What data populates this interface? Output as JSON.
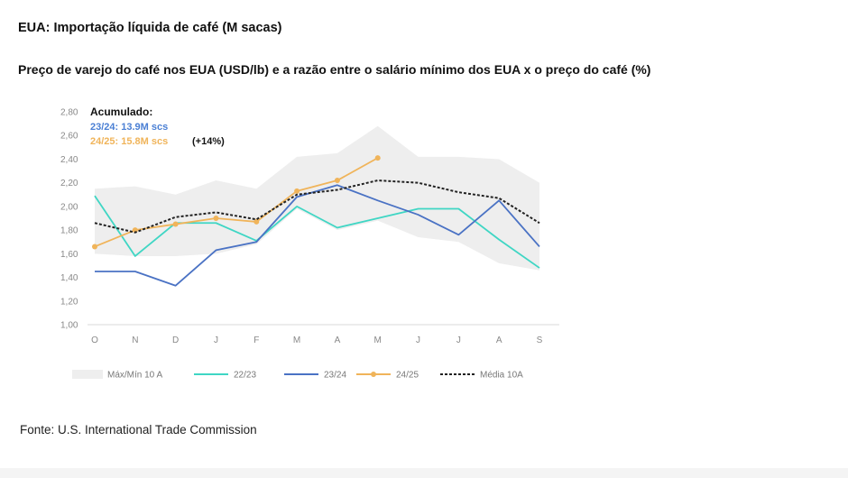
{
  "title": "EUA: Importação líquida de café (M sacas)",
  "subtitle": "Preço de varejo do café nos EUA (USD/lb) e a razão entre o salário mínimo dos EUA x o preço do café (%)",
  "source": "Fonte: U.S. International Trade Commission",
  "annotation": {
    "heading": "Acumulado:",
    "line1": "23/24: 13.9M scs",
    "line2": "24/25: 15.8M scs",
    "line2_suffix": "(+14%)"
  },
  "chart_data": {
    "type": "line",
    "categories": [
      "O",
      "N",
      "D",
      "J",
      "F",
      "M",
      "A",
      "M",
      "J",
      "J",
      "A",
      "S"
    ],
    "ylim": [
      1.0,
      2.8
    ],
    "yticks": [
      "1,00",
      "1,20",
      "1,40",
      "1,60",
      "1,80",
      "2,00",
      "2,20",
      "2,40",
      "2,60",
      "2,80"
    ],
    "grid": false,
    "legend_position": "bottom",
    "band": {
      "name": "Máx/Mín 10 A",
      "color": "#eeeeee",
      "max": [
        2.15,
        2.17,
        2.1,
        2.22,
        2.15,
        2.42,
        2.45,
        2.68,
        2.42,
        2.42,
        2.4,
        2.2
      ],
      "min": [
        1.6,
        1.58,
        1.58,
        1.6,
        1.68,
        1.98,
        1.8,
        1.88,
        1.74,
        1.7,
        1.52,
        1.46
      ]
    },
    "series": [
      {
        "name": "22/23",
        "color": "#3fd6c4",
        "style": "solid",
        "marker": false,
        "values": [
          2.09,
          1.58,
          1.86,
          1.86,
          1.71,
          2.0,
          1.82,
          1.9,
          1.98,
          1.98,
          1.72,
          1.48
        ]
      },
      {
        "name": "23/24",
        "color": "#4a72c4",
        "style": "solid",
        "marker": false,
        "values": [
          1.45,
          1.45,
          1.33,
          1.63,
          1.7,
          2.08,
          2.18,
          2.05,
          1.93,
          1.76,
          2.05,
          1.66
        ]
      },
      {
        "name": "24/25",
        "color": "#f0b45a",
        "style": "solid",
        "marker": true,
        "values": [
          1.66,
          1.8,
          1.85,
          1.9,
          1.87,
          2.13,
          2.22,
          2.41,
          null,
          null,
          null,
          null
        ]
      },
      {
        "name": "Média 10A",
        "color": "#222222",
        "style": "dotted",
        "marker": false,
        "values": [
          1.86,
          1.78,
          1.91,
          1.95,
          1.89,
          2.1,
          2.14,
          2.22,
          2.2,
          2.12,
          2.07,
          1.86
        ]
      }
    ]
  }
}
